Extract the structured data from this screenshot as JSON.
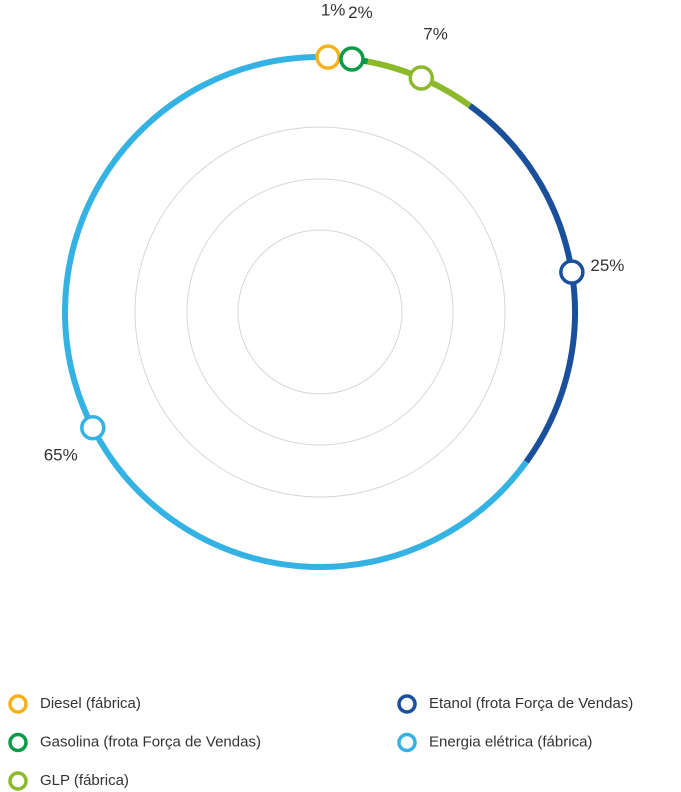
{
  "chart_data": {
    "type": "donut",
    "categories": [
      "Diesel (fábrica)",
      "Gasolina (frota Força de Vendas)",
      "GLP (fábrica)",
      "Etanol (frota Força de Vendas)",
      "Energia elétrica (fábrica)"
    ],
    "values": [
      1,
      2,
      7,
      25,
      65
    ],
    "value_labels": [
      "1%",
      "2%",
      "7%",
      "25%",
      "65%"
    ],
    "colors": [
      "#f5b21c",
      "#0a9a48",
      "#8cb92a",
      "#1a4f9c",
      "#35b2e4"
    ]
  }
}
